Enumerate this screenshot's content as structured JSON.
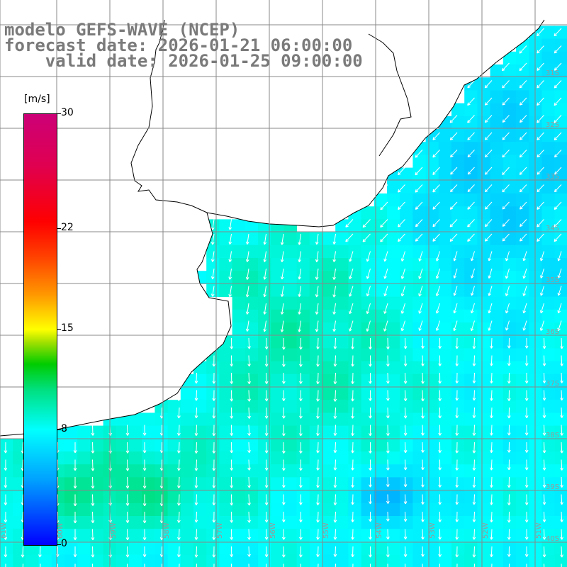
{
  "title": {
    "line1": "modelo GEFS-WAVE (NCEP)",
    "line2": "forecast date: 2026-01-21 06:00:00",
    "line3": "valid date: 2026-01-25 09:00:00"
  },
  "colorbar": {
    "units": "[m/s]",
    "ticks": [
      "30",
      "22",
      "15",
      "8",
      "0"
    ],
    "tick_values": [
      30,
      22,
      15,
      8,
      0
    ],
    "range": [
      0,
      30
    ],
    "colors": [
      "#0000ff",
      "#00a0ff",
      "#00ffff",
      "#00cc00",
      "#ffff00",
      "#ff9900",
      "#ff0000",
      "#cc0077"
    ]
  },
  "map": {
    "variable": "wind speed and direction",
    "land_color": "#ffffff",
    "grid_color": "#888888",
    "arrow_color": "#ffffff",
    "lon_labels": [
      "61W",
      "60W",
      "59W",
      "58W",
      "57W",
      "56W",
      "55W",
      "54W",
      "53W",
      "52W",
      "51W"
    ],
    "lat_labels": [
      "31S",
      "32S",
      "33S",
      "34S",
      "35S",
      "36S",
      "37S",
      "38S",
      "39S",
      "40S"
    ],
    "dominant_direction": "southward (from north-northeast)",
    "typical_speed_range_ms": [
      5,
      12
    ]
  }
}
